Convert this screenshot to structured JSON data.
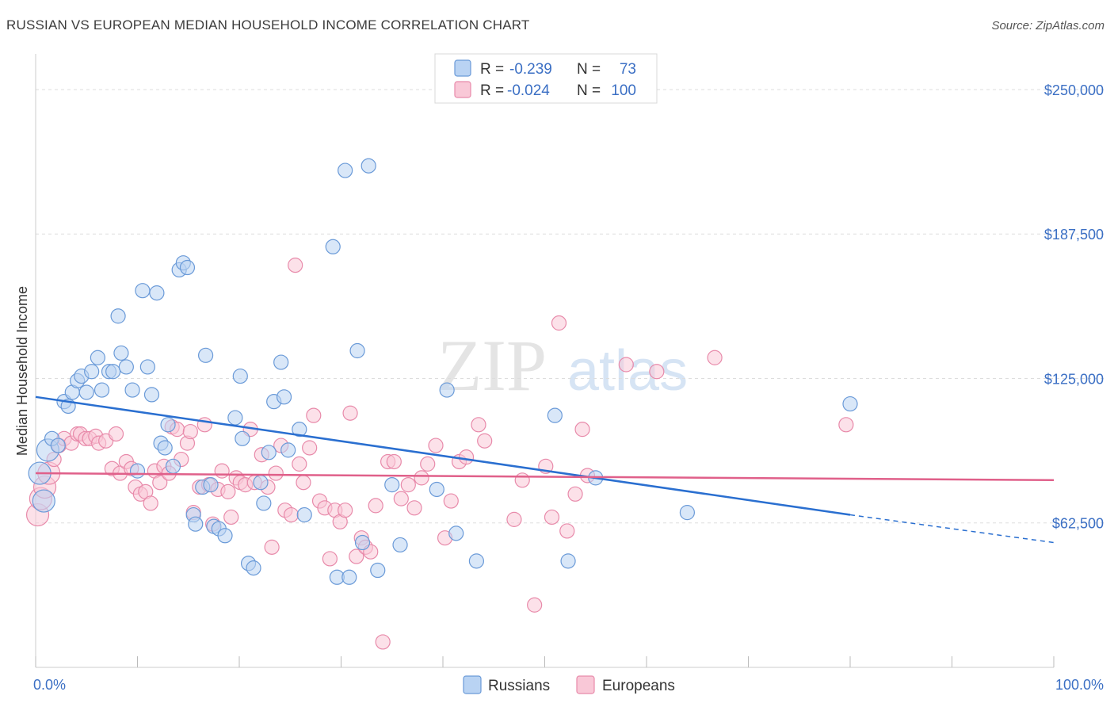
{
  "title": "RUSSIAN VS EUROPEAN MEDIAN HOUSEHOLD INCOME CORRELATION CHART",
  "source": "Source: ZipAtlas.com",
  "watermark": {
    "zip": "ZIP",
    "atlas": "atlas"
  },
  "colors": {
    "russians_fill": "#b9d3f3",
    "russians_stroke": "#6a9ad8",
    "russians_line": "#2a6fd0",
    "europeans_fill": "#f9c8d7",
    "europeans_stroke": "#e88aaa",
    "europeans_line": "#e0608a",
    "axis_text": "#3b6fc4",
    "grid": "#dddddd"
  },
  "legend": {
    "r_label": "R =",
    "n_label": "N =",
    "rows": [
      {
        "series": "Russians",
        "r": "-0.239",
        "n": "73"
      },
      {
        "series": "Europeans",
        "r": "-0.024",
        "n": "100"
      }
    ]
  },
  "bottom_legend": [
    "Russians",
    "Europeans"
  ],
  "chart_data": {
    "type": "scatter",
    "title": "RUSSIAN VS EUROPEAN MEDIAN HOUSEHOLD INCOME CORRELATION CHART",
    "xlabel": "",
    "ylabel": "Median Household Income",
    "xlim": [
      0,
      100
    ],
    "ylim": [
      0,
      262000
    ],
    "x_tick_labels": [
      "0.0%",
      "100.0%"
    ],
    "y_ticks": [
      62500,
      125000,
      187500,
      250000
    ],
    "y_tick_labels": [
      "$62,500",
      "$125,000",
      "$187,500",
      "$250,000"
    ],
    "grid": "horizontal dashed",
    "legend_position": "top-center",
    "series": [
      {
        "name": "Russians",
        "r": -0.239,
        "n": 73,
        "trend": {
          "x0": 0,
          "y0": 117000,
          "x1": 80,
          "y1": 66000,
          "dashed_to_x": 100,
          "dashed_to_y": 54000
        },
        "points": [
          [
            0.4,
            84000
          ],
          [
            0.8,
            72000
          ],
          [
            1.2,
            94000
          ],
          [
            1.6,
            99000
          ],
          [
            2.2,
            96000
          ],
          [
            2.8,
            115000
          ],
          [
            3.2,
            113000
          ],
          [
            3.6,
            119000
          ],
          [
            4.1,
            124000
          ],
          [
            4.5,
            126000
          ],
          [
            5.0,
            119000
          ],
          [
            5.5,
            128000
          ],
          [
            6.1,
            134000
          ],
          [
            6.5,
            120000
          ],
          [
            7.2,
            128000
          ],
          [
            7.6,
            128000
          ],
          [
            8.1,
            152000
          ],
          [
            8.4,
            136000
          ],
          [
            8.9,
            130000
          ],
          [
            9.5,
            120000
          ],
          [
            10.0,
            85000
          ],
          [
            10.5,
            163000
          ],
          [
            11.0,
            130000
          ],
          [
            11.4,
            118000
          ],
          [
            11.9,
            162000
          ],
          [
            12.3,
            97000
          ],
          [
            12.7,
            95000
          ],
          [
            13.0,
            105000
          ],
          [
            13.5,
            87000
          ],
          [
            14.1,
            172000
          ],
          [
            14.5,
            175000
          ],
          [
            14.9,
            173000
          ],
          [
            15.5,
            66000
          ],
          [
            15.7,
            62000
          ],
          [
            16.4,
            78000
          ],
          [
            16.7,
            135000
          ],
          [
            17.2,
            79000
          ],
          [
            17.5,
            61000
          ],
          [
            18.0,
            60000
          ],
          [
            18.6,
            57000
          ],
          [
            19.6,
            108000
          ],
          [
            20.1,
            126000
          ],
          [
            20.3,
            99000
          ],
          [
            20.9,
            45000
          ],
          [
            21.4,
            43000
          ],
          [
            22.1,
            80000
          ],
          [
            22.4,
            71000
          ],
          [
            22.9,
            93000
          ],
          [
            23.4,
            115000
          ],
          [
            24.1,
            132000
          ],
          [
            24.4,
            117000
          ],
          [
            24.8,
            94000
          ],
          [
            25.9,
            103000
          ],
          [
            26.4,
            66000
          ],
          [
            29.2,
            182000
          ],
          [
            29.6,
            39000
          ],
          [
            30.4,
            215000
          ],
          [
            30.8,
            39000
          ],
          [
            31.6,
            137000
          ],
          [
            32.1,
            54000
          ],
          [
            32.7,
            217000
          ],
          [
            33.6,
            42000
          ],
          [
            35.0,
            79000
          ],
          [
            35.8,
            53000
          ],
          [
            39.4,
            77000
          ],
          [
            40.4,
            120000
          ],
          [
            41.3,
            58000
          ],
          [
            43.3,
            46000
          ],
          [
            51.0,
            109000
          ],
          [
            52.3,
            46000
          ],
          [
            64.0,
            67000
          ],
          [
            80.0,
            114000
          ],
          [
            55.0,
            82000
          ]
        ]
      },
      {
        "name": "Europeans",
        "r": -0.024,
        "n": 100,
        "trend": {
          "x0": 0,
          "y0": 84000,
          "x1": 100,
          "y1": 81000
        },
        "points": [
          [
            0.2,
            66000
          ],
          [
            0.5,
            73000
          ],
          [
            0.9,
            78000
          ],
          [
            1.3,
            84000
          ],
          [
            1.8,
            90000
          ],
          [
            2.3,
            96000
          ],
          [
            2.8,
            99000
          ],
          [
            3.5,
            97000
          ],
          [
            4.1,
            101000
          ],
          [
            4.4,
            101000
          ],
          [
            4.9,
            99000
          ],
          [
            5.3,
            99000
          ],
          [
            5.9,
            100000
          ],
          [
            6.2,
            97000
          ],
          [
            6.9,
            98000
          ],
          [
            7.5,
            86000
          ],
          [
            7.9,
            101000
          ],
          [
            8.3,
            84000
          ],
          [
            8.9,
            89000
          ],
          [
            9.4,
            86000
          ],
          [
            9.8,
            78000
          ],
          [
            10.3,
            75000
          ],
          [
            10.8,
            76000
          ],
          [
            11.3,
            71000
          ],
          [
            11.7,
            85000
          ],
          [
            12.2,
            80000
          ],
          [
            12.6,
            87000
          ],
          [
            13.1,
            84000
          ],
          [
            13.4,
            104000
          ],
          [
            13.9,
            103000
          ],
          [
            14.3,
            90000
          ],
          [
            14.9,
            97000
          ],
          [
            15.2,
            102000
          ],
          [
            15.5,
            67000
          ],
          [
            16.1,
            78000
          ],
          [
            16.6,
            105000
          ],
          [
            17.0,
            79000
          ],
          [
            17.4,
            62000
          ],
          [
            17.9,
            77000
          ],
          [
            18.3,
            85000
          ],
          [
            18.9,
            76000
          ],
          [
            19.2,
            65000
          ],
          [
            19.7,
            82000
          ],
          [
            20.1,
            80000
          ],
          [
            20.6,
            79000
          ],
          [
            21.1,
            103000
          ],
          [
            21.5,
            80000
          ],
          [
            22.2,
            92000
          ],
          [
            22.8,
            78000
          ],
          [
            23.2,
            52000
          ],
          [
            23.6,
            84000
          ],
          [
            24.1,
            96000
          ],
          [
            24.5,
            68000
          ],
          [
            25.1,
            66000
          ],
          [
            25.5,
            174000
          ],
          [
            25.9,
            88000
          ],
          [
            26.3,
            80000
          ],
          [
            26.9,
            95000
          ],
          [
            27.3,
            109000
          ],
          [
            27.9,
            72000
          ],
          [
            28.4,
            69000
          ],
          [
            28.9,
            47000
          ],
          [
            29.4,
            68000
          ],
          [
            29.9,
            63000
          ],
          [
            30.4,
            68000
          ],
          [
            30.9,
            110000
          ],
          [
            31.5,
            48000
          ],
          [
            32.0,
            56000
          ],
          [
            32.4,
            52000
          ],
          [
            32.9,
            50000
          ],
          [
            33.4,
            70000
          ],
          [
            34.1,
            11000
          ],
          [
            34.6,
            89000
          ],
          [
            35.2,
            89000
          ],
          [
            35.9,
            73000
          ],
          [
            36.6,
            79000
          ],
          [
            37.2,
            69000
          ],
          [
            37.9,
            82000
          ],
          [
            38.5,
            88000
          ],
          [
            39.3,
            96000
          ],
          [
            40.2,
            56000
          ],
          [
            40.8,
            72000
          ],
          [
            41.6,
            89000
          ],
          [
            42.3,
            91000
          ],
          [
            43.5,
            105000
          ],
          [
            44.1,
            98000
          ],
          [
            47.0,
            64000
          ],
          [
            47.8,
            81000
          ],
          [
            49.0,
            27000
          ],
          [
            50.1,
            87000
          ],
          [
            50.7,
            65000
          ],
          [
            51.4,
            149000
          ],
          [
            52.2,
            59000
          ],
          [
            53.0,
            75000
          ],
          [
            53.7,
            103000
          ],
          [
            54.2,
            83000
          ],
          [
            58.0,
            131000
          ],
          [
            61.0,
            128000
          ],
          [
            66.7,
            134000
          ],
          [
            79.6,
            105000
          ]
        ]
      }
    ]
  }
}
